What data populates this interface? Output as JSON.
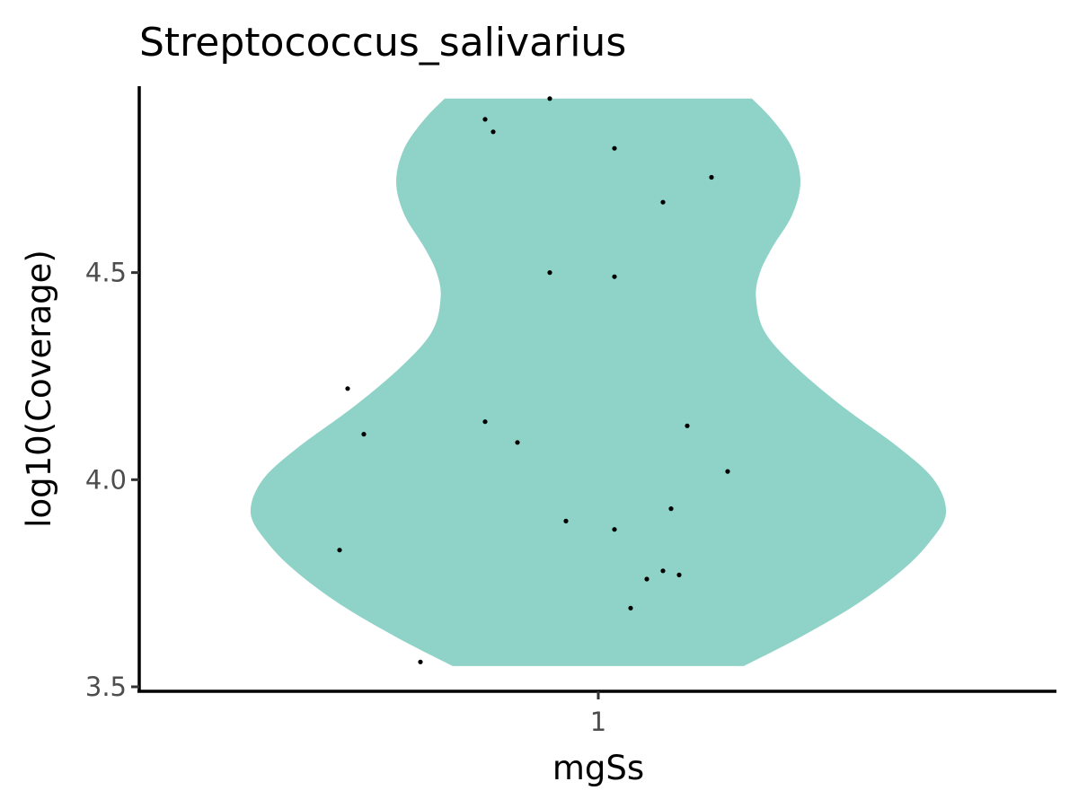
{
  "chart_data": {
    "type": "violin",
    "title": "Streptococcus_salivarius",
    "xlabel": "mgSs",
    "ylabel": "log10(Coverage)",
    "categories": [
      "1"
    ],
    "ylim": [
      3.5,
      4.95
    ],
    "yticks": [
      3.5,
      4.0,
      4.5
    ],
    "ytick_labels": [
      "3.5",
      "4.0",
      "4.5"
    ],
    "grid": false,
    "legend": "none",
    "colors": {
      "violin_fill": "#8fd3c8",
      "point": "#000000",
      "axis": "#000000"
    },
    "violin": {
      "category": "1",
      "y_range": [
        3.55,
        4.92
      ],
      "density_profile": [
        {
          "y": 3.55,
          "width": 0.36
        },
        {
          "y": 3.62,
          "width": 0.5
        },
        {
          "y": 3.7,
          "width": 0.64
        },
        {
          "y": 3.78,
          "width": 0.75
        },
        {
          "y": 3.85,
          "width": 0.82
        },
        {
          "y": 3.92,
          "width": 0.86
        },
        {
          "y": 4.0,
          "width": 0.83
        },
        {
          "y": 4.08,
          "width": 0.74
        },
        {
          "y": 4.18,
          "width": 0.6
        },
        {
          "y": 4.28,
          "width": 0.48
        },
        {
          "y": 4.36,
          "width": 0.41
        },
        {
          "y": 4.44,
          "width": 0.39
        },
        {
          "y": 4.5,
          "width": 0.4
        },
        {
          "y": 4.56,
          "width": 0.43
        },
        {
          "y": 4.64,
          "width": 0.48
        },
        {
          "y": 4.72,
          "width": 0.5
        },
        {
          "y": 4.8,
          "width": 0.48
        },
        {
          "y": 4.87,
          "width": 0.43
        },
        {
          "y": 4.92,
          "width": 0.38
        }
      ]
    },
    "points": [
      {
        "x": 0.94,
        "y": 4.92
      },
      {
        "x": 0.86,
        "y": 4.87
      },
      {
        "x": 0.87,
        "y": 4.84
      },
      {
        "x": 1.02,
        "y": 4.8
      },
      {
        "x": 1.14,
        "y": 4.73
      },
      {
        "x": 1.08,
        "y": 4.67
      },
      {
        "x": 0.94,
        "y": 4.5
      },
      {
        "x": 1.02,
        "y": 4.49
      },
      {
        "x": 0.69,
        "y": 4.22
      },
      {
        "x": 0.86,
        "y": 4.14
      },
      {
        "x": 1.11,
        "y": 4.13
      },
      {
        "x": 0.71,
        "y": 4.11
      },
      {
        "x": 0.9,
        "y": 4.09
      },
      {
        "x": 1.16,
        "y": 4.02
      },
      {
        "x": 1.09,
        "y": 3.93
      },
      {
        "x": 0.96,
        "y": 3.9
      },
      {
        "x": 1.02,
        "y": 3.88
      },
      {
        "x": 0.68,
        "y": 3.83
      },
      {
        "x": 1.08,
        "y": 3.78
      },
      {
        "x": 1.06,
        "y": 3.76
      },
      {
        "x": 1.1,
        "y": 3.77
      },
      {
        "x": 1.04,
        "y": 3.69
      },
      {
        "x": 0.78,
        "y": 3.56
      }
    ]
  }
}
